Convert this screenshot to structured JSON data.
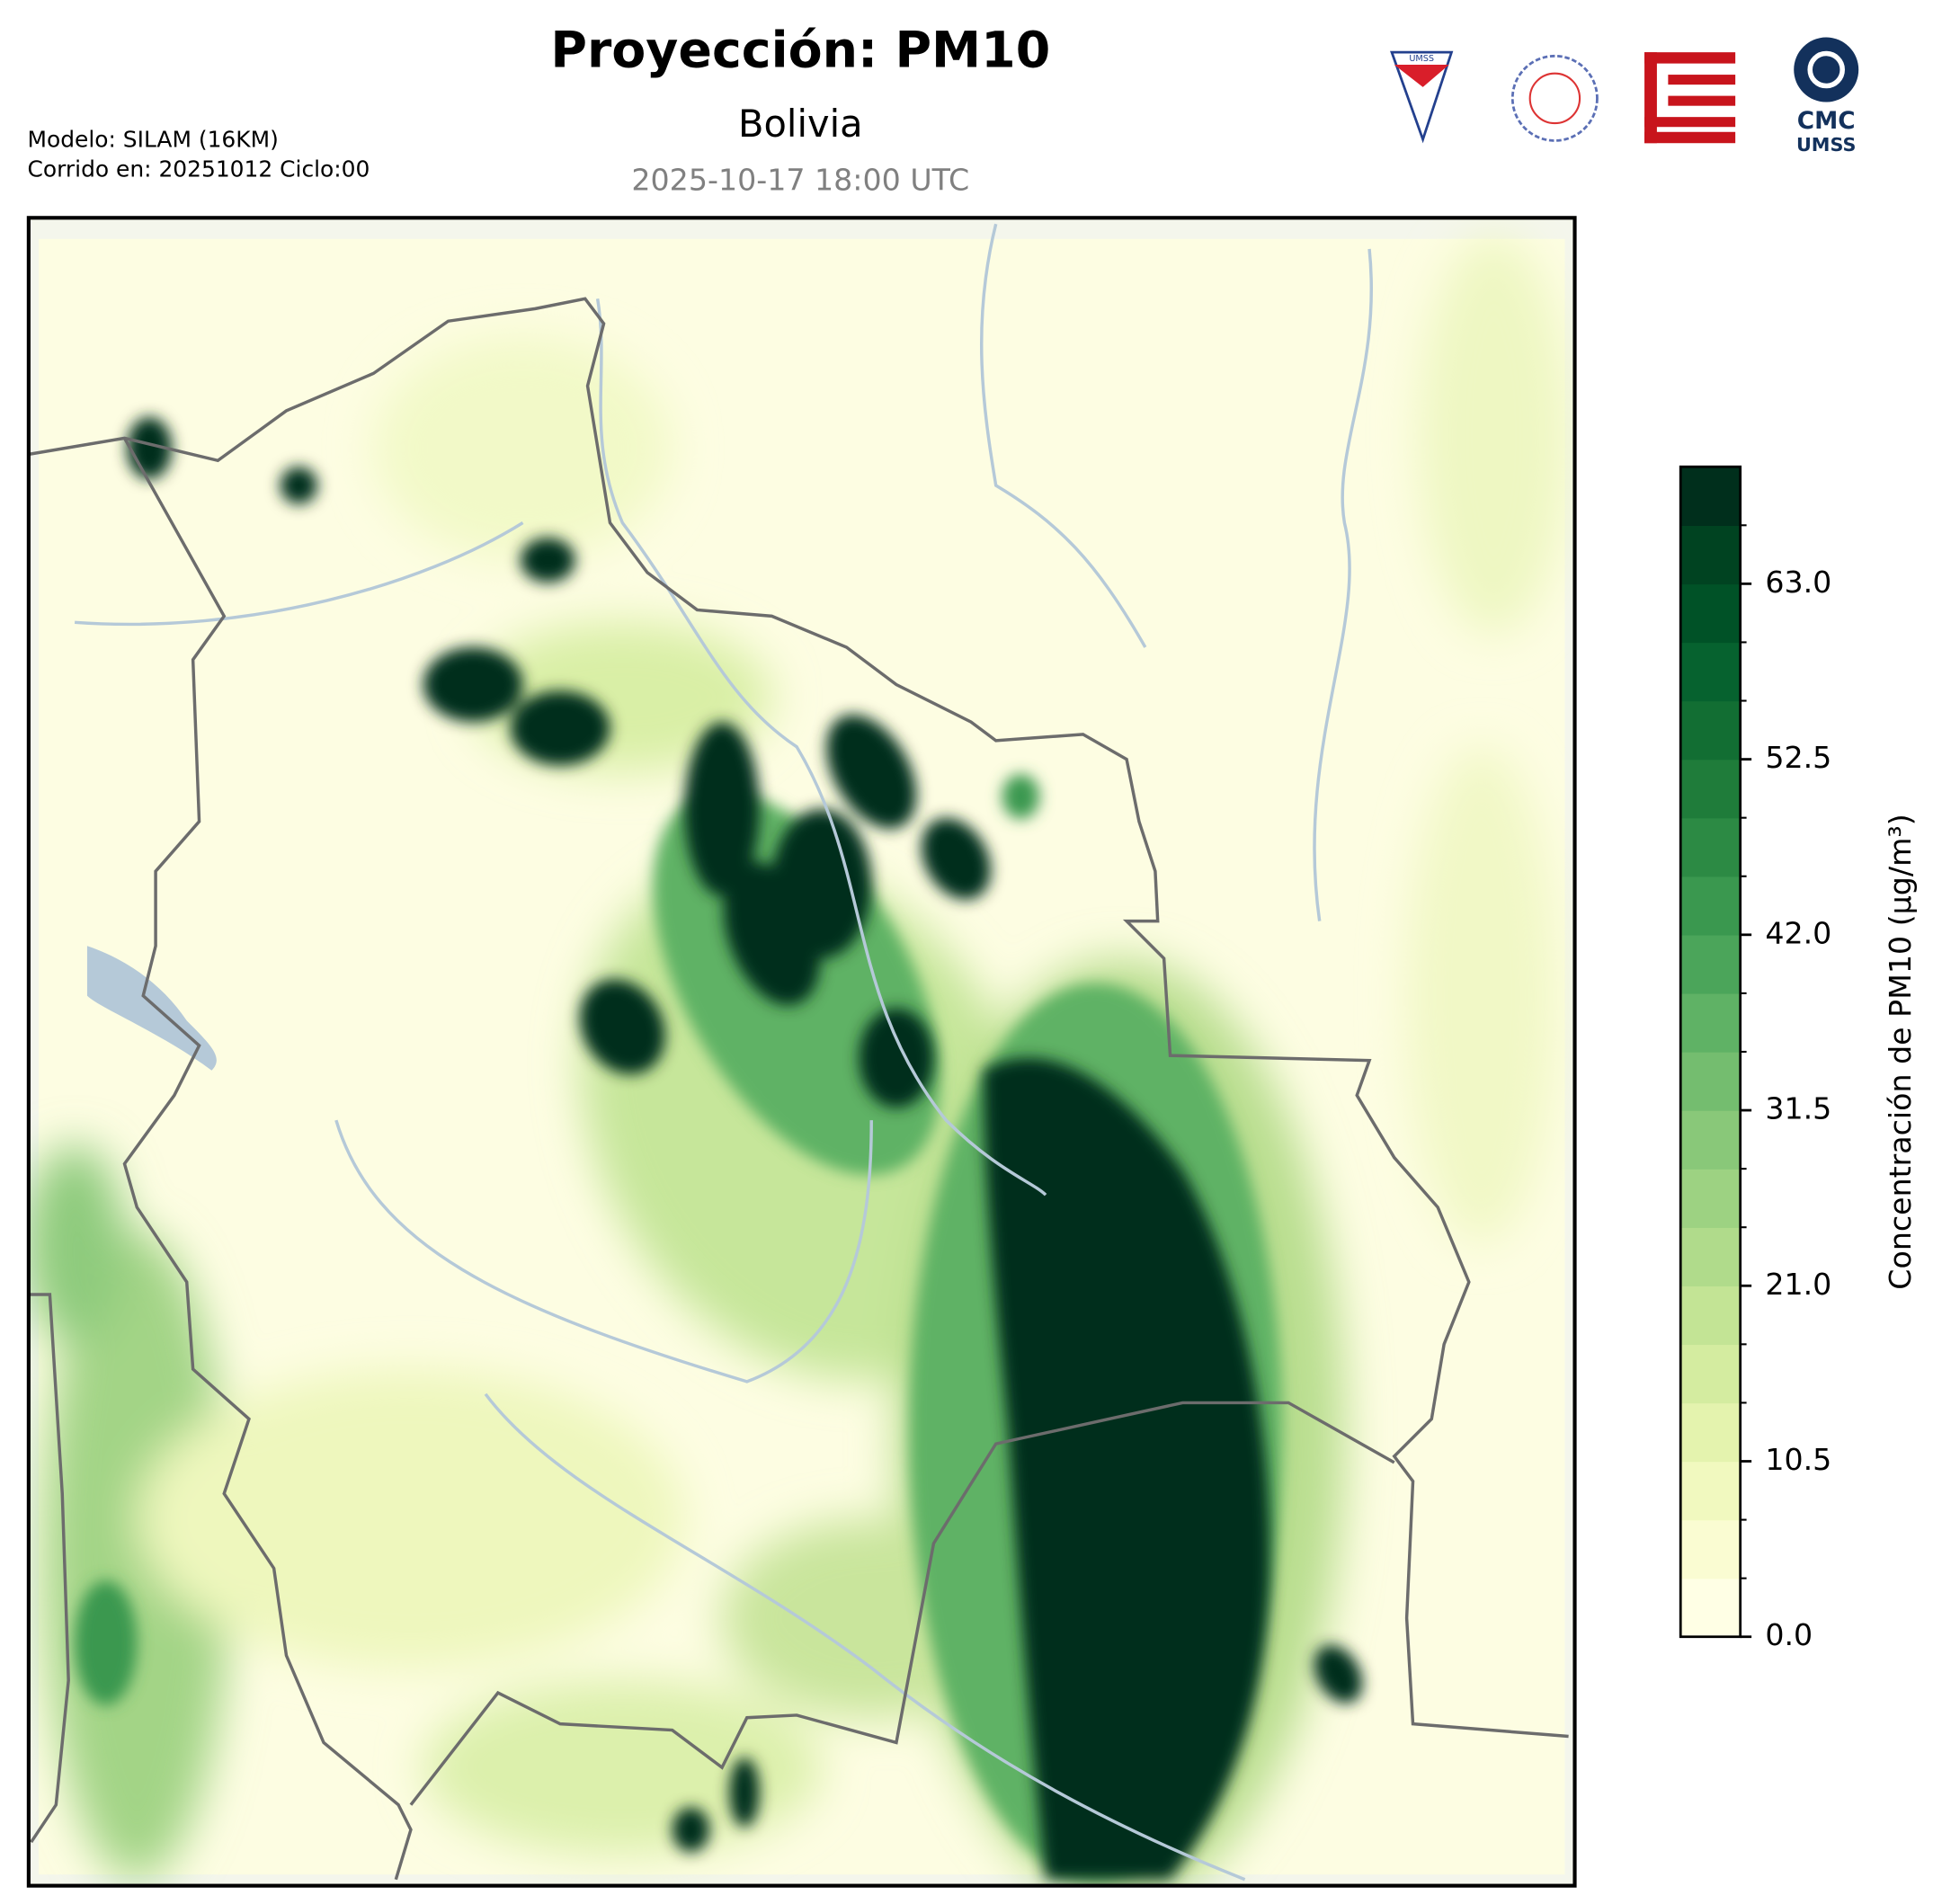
{
  "header": {
    "title": "Proyección: PM10",
    "subtitle": "Bolivia",
    "valid_time": "2025-10-17 18:00 UTC",
    "model": "Modelo: SILAM (16KM)",
    "run": "Corrido en: 20251012 Ciclo:00"
  },
  "logos": {
    "shield": "UMSS",
    "cmc_line1": "CMC",
    "cmc_line2": "UMSS"
  },
  "chart_data": {
    "type": "colorbar",
    "label": "Concentración de PM10 (µg/m³)",
    "ylim": [
      0,
      70
    ],
    "yticks": [
      {
        "value": 0,
        "label": "0.0"
      },
      10.5,
      {
        "value": 21,
        "label": "21.0"
      },
      31.5,
      {
        "value": 42,
        "label": "42.0"
      },
      52.5,
      {
        "value": 63,
        "label": "63.0"
      }
    ],
    "colors": [
      "#ffffe5",
      "#fafcd2",
      "#f1f9bf",
      "#e4f3ae",
      "#d4eca0",
      "#c3e495",
      "#b0db8b",
      "#9dd282",
      "#89c879",
      "#74bd6f",
      "#5fb265",
      "#4ba55a",
      "#3a984f",
      "#2c8a44",
      "#1f7c3a",
      "#126e33",
      "#06622f",
      "#005227",
      "#004321",
      "#002f1c"
    ]
  }
}
